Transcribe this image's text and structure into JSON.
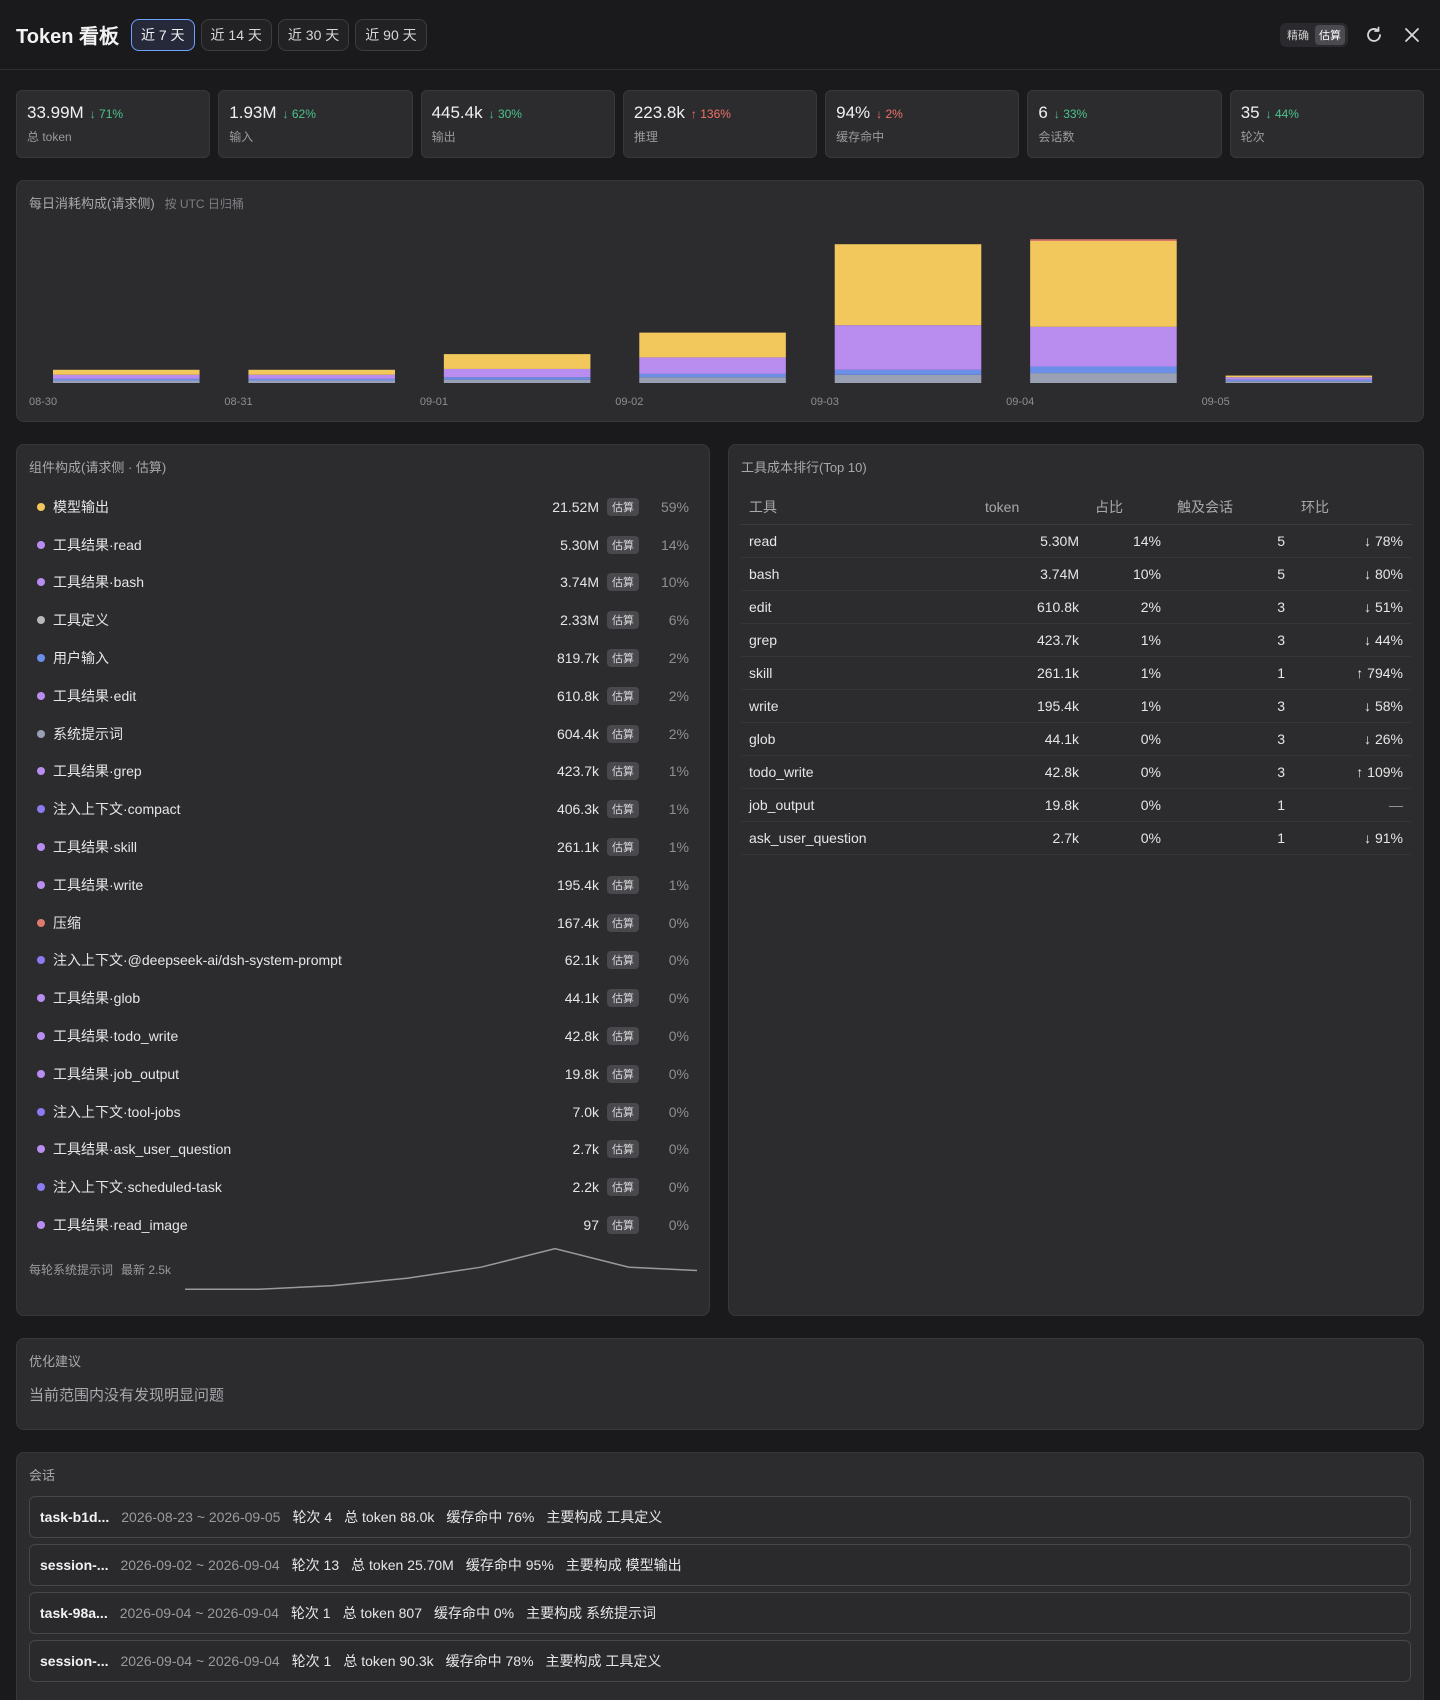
{
  "header": {
    "title": "Token 看板",
    "ranges": [
      "近 7 天",
      "近 14 天",
      "近 30 天",
      "近 90 天"
    ],
    "active_range": 0,
    "modes": [
      "精确",
      "估算"
    ],
    "active_mode": 1
  },
  "stats": [
    {
      "value": "33.99M",
      "change": "↓ 71%",
      "dir": "down",
      "label": "总 token"
    },
    {
      "value": "1.93M",
      "change": "↓ 62%",
      "dir": "down",
      "label": "输入"
    },
    {
      "value": "445.4k",
      "change": "↓ 30%",
      "dir": "down",
      "label": "输出"
    },
    {
      "value": "223.8k",
      "change": "↑ 136%",
      "dir": "up",
      "label": "推理"
    },
    {
      "value": "94%",
      "change": "↓ 2%",
      "dir": "up",
      "label": "缓存命中"
    },
    {
      "value": "6",
      "change": "↓ 33%",
      "dir": "down",
      "label": "会话数"
    },
    {
      "value": "35",
      "change": "↓ 44%",
      "dir": "down",
      "label": "轮次"
    }
  ],
  "daily": {
    "title": "每日消耗构成(请求侧)",
    "subtitle": "按 UTC 日归桶"
  },
  "chart_data": {
    "type": "bar",
    "stacked": true,
    "categories": [
      "08-30",
      "08-31",
      "09-01",
      "09-02",
      "09-03",
      "09-04",
      "09-05"
    ],
    "series": [
      {
        "color": "#9aa0b4",
        "values": [
          0.15,
          0.15,
          0.2,
          0.35,
          0.5,
          0.6,
          0.1
        ]
      },
      {
        "color": "#6b8fe8",
        "values": [
          0.1,
          0.1,
          0.15,
          0.2,
          0.3,
          0.4,
          0.1
        ]
      },
      {
        "color": "#b98cf0",
        "values": [
          0.25,
          0.25,
          0.5,
          1.0,
          2.7,
          2.4,
          0.15
        ]
      },
      {
        "color": "#f2c75c",
        "values": [
          0.3,
          0.3,
          0.9,
          1.5,
          4.9,
          5.2,
          0.1
        ]
      },
      {
        "color": "#e07a6e",
        "values": [
          0.0,
          0.0,
          0.0,
          0.0,
          0.0,
          0.1,
          0.0
        ]
      }
    ],
    "ylim": [
      0,
      9.2
    ],
    "grid": false,
    "legend": "none"
  },
  "components": {
    "title": "组件构成(请求侧 · 估算)",
    "badge": "估算",
    "items": [
      {
        "name": "模型输出",
        "value": "21.52M",
        "pct": "59%",
        "color": "#f2c75c"
      },
      {
        "name": "工具结果·read",
        "value": "5.30M",
        "pct": "14%",
        "color": "#b98cf0"
      },
      {
        "name": "工具结果·bash",
        "value": "3.74M",
        "pct": "10%",
        "color": "#b98cf0"
      },
      {
        "name": "工具定义",
        "value": "2.33M",
        "pct": "6%",
        "color": "#b7b7bb"
      },
      {
        "name": "用户输入",
        "value": "819.7k",
        "pct": "2%",
        "color": "#6b8fe8"
      },
      {
        "name": "工具结果·edit",
        "value": "610.8k",
        "pct": "2%",
        "color": "#b98cf0"
      },
      {
        "name": "系统提示词",
        "value": "604.4k",
        "pct": "2%",
        "color": "#9aa0b4"
      },
      {
        "name": "工具结果·grep",
        "value": "423.7k",
        "pct": "1%",
        "color": "#b98cf0"
      },
      {
        "name": "注入上下文·compact",
        "value": "406.3k",
        "pct": "1%",
        "color": "#8a7cf0"
      },
      {
        "name": "工具结果·skill",
        "value": "261.1k",
        "pct": "1%",
        "color": "#b98cf0"
      },
      {
        "name": "工具结果·write",
        "value": "195.4k",
        "pct": "1%",
        "color": "#b98cf0"
      },
      {
        "name": "压缩",
        "value": "167.4k",
        "pct": "0%",
        "color": "#e07a6e"
      },
      {
        "name": "注入上下文·@deepseek-ai/dsh-system-prompt",
        "value": "62.1k",
        "pct": "0%",
        "color": "#8a7cf0"
      },
      {
        "name": "工具结果·glob",
        "value": "44.1k",
        "pct": "0%",
        "color": "#b98cf0"
      },
      {
        "name": "工具结果·todo_write",
        "value": "42.8k",
        "pct": "0%",
        "color": "#b98cf0"
      },
      {
        "name": "工具结果·job_output",
        "value": "19.8k",
        "pct": "0%",
        "color": "#b98cf0"
      },
      {
        "name": "注入上下文·tool-jobs",
        "value": "7.0k",
        "pct": "0%",
        "color": "#8a7cf0"
      },
      {
        "name": "工具结果·ask_user_question",
        "value": "2.7k",
        "pct": "0%",
        "color": "#b98cf0"
      },
      {
        "name": "注入上下文·scheduled-task",
        "value": "2.2k",
        "pct": "0%",
        "color": "#8a7cf0"
      },
      {
        "name": "工具结果·read_image",
        "value": "97",
        "pct": "0%",
        "color": "#b98cf0"
      }
    ],
    "sparkline": {
      "label": "每轮系统提示词",
      "latest": "最新 2.5k",
      "values": [
        2.0,
        2.0,
        2.1,
        2.3,
        2.6,
        3.1,
        2.6,
        2.5
      ]
    }
  },
  "tools": {
    "title": "工具成本排行(Top 10)",
    "headers": [
      "工具",
      "token",
      "占比",
      "触及会话",
      "环比"
    ],
    "rows": [
      {
        "name": "read",
        "token": "5.30M",
        "pct": "14%",
        "sessions": "5",
        "change": "↓ 78%",
        "dir": "down"
      },
      {
        "name": "bash",
        "token": "3.74M",
        "pct": "10%",
        "sessions": "5",
        "change": "↓ 80%",
        "dir": "down"
      },
      {
        "name": "edit",
        "token": "610.8k",
        "pct": "2%",
        "sessions": "3",
        "change": "↓ 51%",
        "dir": "down"
      },
      {
        "name": "grep",
        "token": "423.7k",
        "pct": "1%",
        "sessions": "3",
        "change": "↓ 44%",
        "dir": "down"
      },
      {
        "name": "skill",
        "token": "261.1k",
        "pct": "1%",
        "sessions": "1",
        "change": "↑ 794%",
        "dir": "up"
      },
      {
        "name": "write",
        "token": "195.4k",
        "pct": "1%",
        "sessions": "3",
        "change": "↓ 58%",
        "dir": "down"
      },
      {
        "name": "glob",
        "token": "44.1k",
        "pct": "0%",
        "sessions": "3",
        "change": "↓ 26%",
        "dir": "down"
      },
      {
        "name": "todo_write",
        "token": "42.8k",
        "pct": "0%",
        "sessions": "3",
        "change": "↑ 109%",
        "dir": "up"
      },
      {
        "name": "job_output",
        "token": "19.8k",
        "pct": "0%",
        "sessions": "1",
        "change": "—",
        "dir": "none"
      },
      {
        "name": "ask_user_question",
        "token": "2.7k",
        "pct": "0%",
        "sessions": "1",
        "change": "↓ 91%",
        "dir": "down"
      }
    ]
  },
  "advice": {
    "title": "优化建议",
    "text": "当前范围内没有发现明显问题"
  },
  "sessions": {
    "title": "会话",
    "items": [
      {
        "id": "task-b1d...",
        "date": "2026-08-23 ~ 2026-09-05",
        "turns": "轮次 4",
        "total": "总 token 88.0k",
        "cache": "缓存命中 76%",
        "main": "主要构成 工具定义"
      },
      {
        "id": "session-...",
        "date": "2026-09-02 ~ 2026-09-04",
        "turns": "轮次 13",
        "total": "总 token 25.70M",
        "cache": "缓存命中 95%",
        "main": "主要构成 模型输出"
      },
      {
        "id": "task-98a...",
        "date": "2026-09-04 ~ 2026-09-04",
        "turns": "轮次 1",
        "total": "总 token 807",
        "cache": "缓存命中 0%",
        "main": "主要构成 系统提示词"
      },
      {
        "id": "session-...",
        "date": "2026-09-04 ~ 2026-09-04",
        "turns": "轮次 1",
        "total": "总 token 90.3k",
        "cache": "缓存命中 78%",
        "main": "主要构成 工具定义"
      }
    ]
  }
}
